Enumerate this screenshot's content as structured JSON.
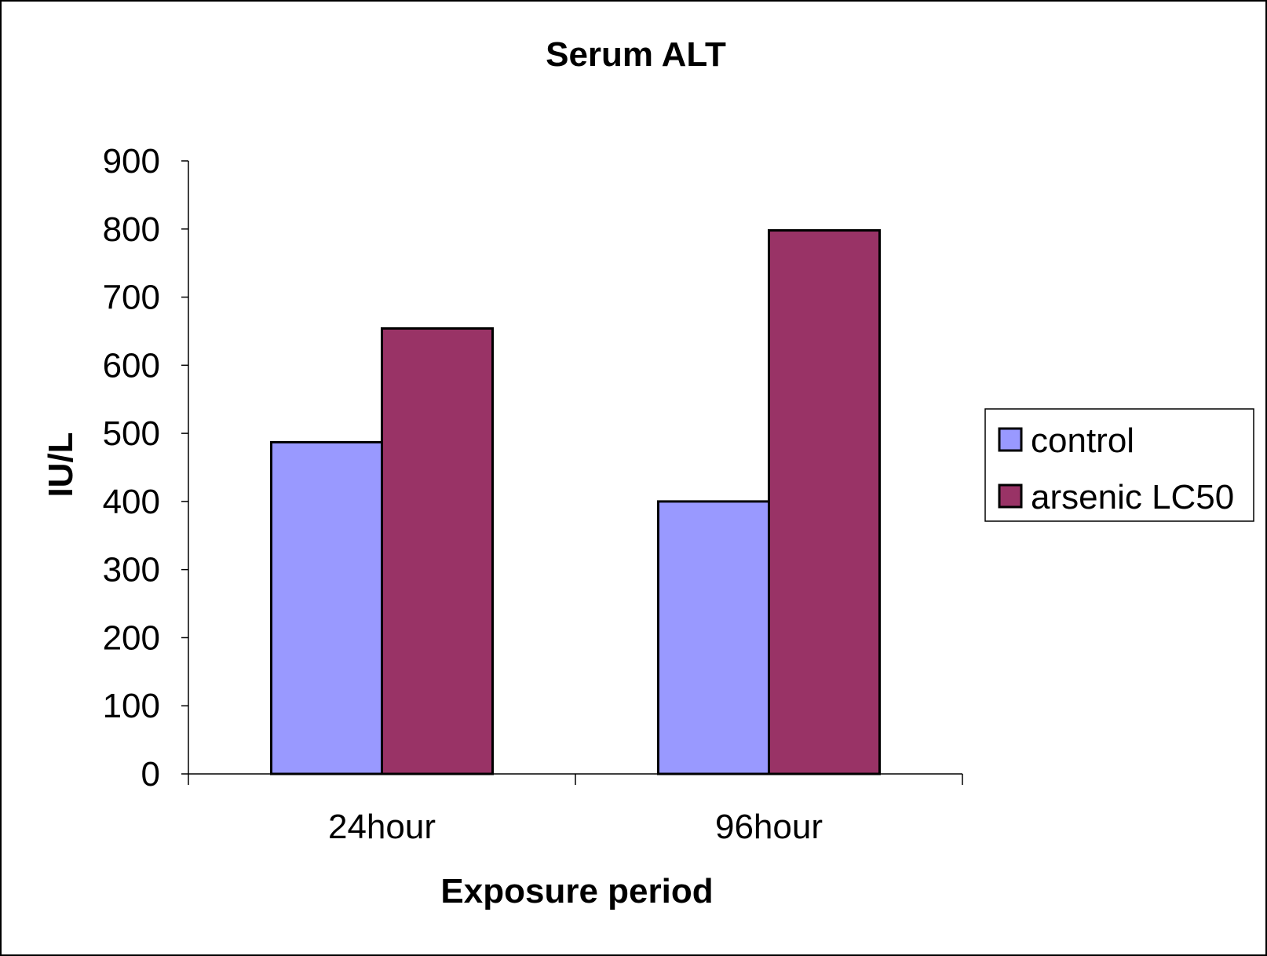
{
  "chart_data": {
    "type": "bar",
    "title": "Serum ALT",
    "xlabel": "Exposure period",
    "ylabel": "IU/L",
    "categories": [
      "24hour",
      "96hour"
    ],
    "series": [
      {
        "name": "control",
        "values": [
          487,
          400
        ],
        "color": "#9999ff"
      },
      {
        "name": "arsenic LC50",
        "values": [
          654,
          798
        ],
        "color": "#993366"
      }
    ],
    "ylim": [
      0,
      900
    ],
    "yticks": [
      0,
      100,
      200,
      300,
      400,
      500,
      600,
      700,
      800,
      900
    ],
    "grid": false,
    "legend_position": "right"
  }
}
